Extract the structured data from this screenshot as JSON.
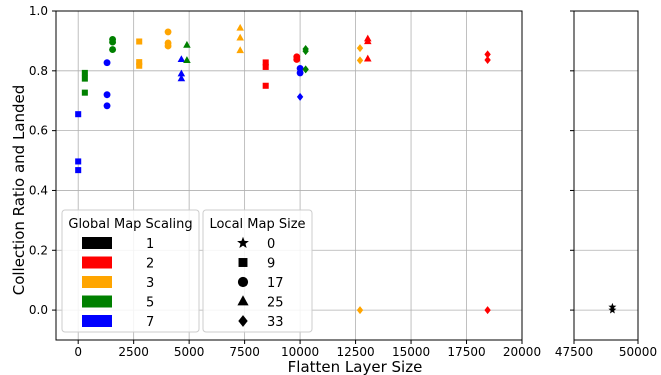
{
  "chart_data": {
    "type": "scatter",
    "xlabel": "Flatten Layer Size",
    "ylabel": "Collection Ratio and Landed",
    "ylim": [
      -0.1,
      1.0
    ],
    "y_ticks": [
      "0.0",
      "0.2",
      "0.4",
      "0.6",
      "0.8",
      "1.0"
    ],
    "broken_x_axis": true,
    "x_segments": [
      {
        "xlim": [
          -1000,
          20000
        ],
        "ticks": [
          0,
          2500,
          5000,
          7500,
          10000,
          12500,
          15000,
          17500,
          20000
        ],
        "tick_labels": [
          "0",
          "2500",
          "5000",
          "7500",
          "10000",
          "12500",
          "15000",
          "17500",
          "20000"
        ]
      },
      {
        "xlim": [
          47500,
          50000
        ],
        "ticks": [
          47500,
          50000
        ],
        "tick_labels": [
          "47500",
          "50000"
        ]
      }
    ],
    "grid": true,
    "legend_color_title": "Global Map Scaling",
    "legend_marker_title": "Local Map Size",
    "legend_colors": [
      {
        "label": "1",
        "color": "#000000"
      },
      {
        "label": "2",
        "color": "#ff0000"
      },
      {
        "label": "3",
        "color": "#ffa500"
      },
      {
        "label": "5",
        "color": "#008000"
      },
      {
        "label": "7",
        "color": "#0000ff"
      }
    ],
    "legend_markers": [
      {
        "label": "0",
        "marker": "star"
      },
      {
        "label": "9",
        "marker": "square"
      },
      {
        "label": "17",
        "marker": "circle"
      },
      {
        "label": "25",
        "marker": "triangle"
      },
      {
        "label": "33",
        "marker": "diamond"
      }
    ],
    "points": [
      {
        "x": 0,
        "y": 0.655,
        "scaling": "7",
        "marker": "square"
      },
      {
        "x": 0,
        "y": 0.497,
        "scaling": "7",
        "marker": "square"
      },
      {
        "x": 0,
        "y": 0.468,
        "scaling": "7",
        "marker": "square"
      },
      {
        "x": 300,
        "y": 0.793,
        "scaling": "5",
        "marker": "square"
      },
      {
        "x": 300,
        "y": 0.774,
        "scaling": "5",
        "marker": "square"
      },
      {
        "x": 300,
        "y": 0.727,
        "scaling": "5",
        "marker": "square"
      },
      {
        "x": 1300,
        "y": 0.827,
        "scaling": "7",
        "marker": "circle"
      },
      {
        "x": 1300,
        "y": 0.72,
        "scaling": "7",
        "marker": "circle"
      },
      {
        "x": 1300,
        "y": 0.683,
        "scaling": "7",
        "marker": "circle"
      },
      {
        "x": 1550,
        "y": 0.905,
        "scaling": "5",
        "marker": "circle"
      },
      {
        "x": 1550,
        "y": 0.896,
        "scaling": "5",
        "marker": "circle"
      },
      {
        "x": 1550,
        "y": 0.871,
        "scaling": "5",
        "marker": "circle"
      },
      {
        "x": 2750,
        "y": 0.898,
        "scaling": "3",
        "marker": "square"
      },
      {
        "x": 2750,
        "y": 0.829,
        "scaling": "3",
        "marker": "square"
      },
      {
        "x": 2750,
        "y": 0.817,
        "scaling": "3",
        "marker": "square"
      },
      {
        "x": 4050,
        "y": 0.93,
        "scaling": "3",
        "marker": "circle"
      },
      {
        "x": 4050,
        "y": 0.893,
        "scaling": "3",
        "marker": "circle"
      },
      {
        "x": 4050,
        "y": 0.883,
        "scaling": "3",
        "marker": "circle"
      },
      {
        "x": 4650,
        "y": 0.838,
        "scaling": "7",
        "marker": "triangle"
      },
      {
        "x": 4650,
        "y": 0.79,
        "scaling": "7",
        "marker": "triangle"
      },
      {
        "x": 4650,
        "y": 0.774,
        "scaling": "7",
        "marker": "triangle"
      },
      {
        "x": 4900,
        "y": 0.886,
        "scaling": "5",
        "marker": "triangle"
      },
      {
        "x": 4900,
        "y": 0.835,
        "scaling": "5",
        "marker": "triangle"
      },
      {
        "x": 7300,
        "y": 0.943,
        "scaling": "3",
        "marker": "triangle"
      },
      {
        "x": 7300,
        "y": 0.91,
        "scaling": "3",
        "marker": "triangle"
      },
      {
        "x": 7300,
        "y": 0.868,
        "scaling": "3",
        "marker": "triangle"
      },
      {
        "x": 8450,
        "y": 0.828,
        "scaling": "2",
        "marker": "square"
      },
      {
        "x": 8450,
        "y": 0.813,
        "scaling": "2",
        "marker": "square"
      },
      {
        "x": 8450,
        "y": 0.75,
        "scaling": "2",
        "marker": "square"
      },
      {
        "x": 9850,
        "y": 0.847,
        "scaling": "2",
        "marker": "circle"
      },
      {
        "x": 9850,
        "y": 0.838,
        "scaling": "2",
        "marker": "circle"
      },
      {
        "x": 10000,
        "y": 0.808,
        "scaling": "7",
        "marker": "circle"
      },
      {
        "x": 10000,
        "y": 0.793,
        "scaling": "7",
        "marker": "circle"
      },
      {
        "x": 10000,
        "y": 0.713,
        "scaling": "7",
        "marker": "diamond"
      },
      {
        "x": 10250,
        "y": 0.873,
        "scaling": "5",
        "marker": "diamond"
      },
      {
        "x": 10250,
        "y": 0.866,
        "scaling": "5",
        "marker": "diamond"
      },
      {
        "x": 10250,
        "y": 0.805,
        "scaling": "5",
        "marker": "diamond"
      },
      {
        "x": 12700,
        "y": 0.876,
        "scaling": "3",
        "marker": "diamond"
      },
      {
        "x": 12700,
        "y": 0.835,
        "scaling": "3",
        "marker": "diamond"
      },
      {
        "x": 12700,
        "y": 0.0,
        "scaling": "3",
        "marker": "diamond"
      },
      {
        "x": 13050,
        "y": 0.907,
        "scaling": "2",
        "marker": "triangle"
      },
      {
        "x": 13050,
        "y": 0.898,
        "scaling": "2",
        "marker": "triangle"
      },
      {
        "x": 13050,
        "y": 0.84,
        "scaling": "2",
        "marker": "triangle"
      },
      {
        "x": 18450,
        "y": 0.855,
        "scaling": "2",
        "marker": "diamond"
      },
      {
        "x": 18450,
        "y": 0.836,
        "scaling": "2",
        "marker": "diamond"
      },
      {
        "x": 18450,
        "y": 0.0,
        "scaling": "2",
        "marker": "diamond"
      },
      {
        "x": 49000,
        "y": 0.01,
        "scaling": "1",
        "marker": "star"
      },
      {
        "x": 49000,
        "y": 0.0,
        "scaling": "1",
        "marker": "star"
      }
    ]
  }
}
